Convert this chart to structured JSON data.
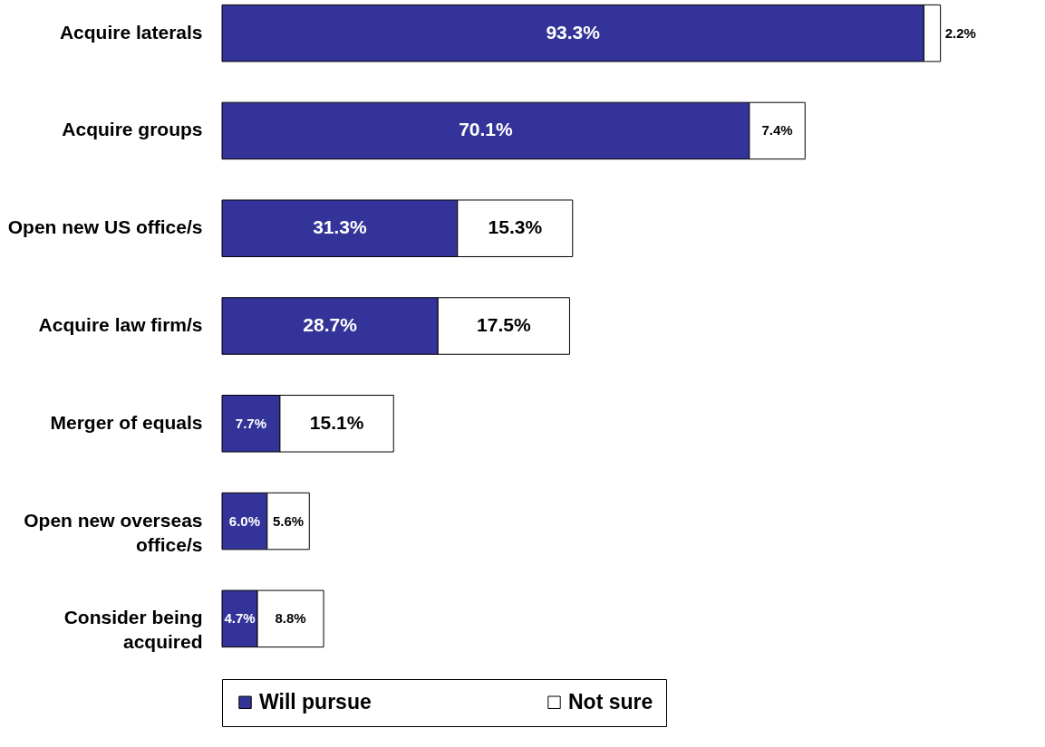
{
  "chart_data": {
    "type": "bar",
    "orientation": "horizontal",
    "stacked": true,
    "legend": "bottom",
    "grid": false,
    "categories": [
      "Acquire laterals",
      "Acquire groups",
      "Open new US office/s",
      "Acquire law firm/s",
      "Merger of equals",
      "Open new overseas office/s",
      "Consider being acquired"
    ],
    "series": [
      {
        "name": "Will pursue",
        "color": "#333399",
        "values": [
          93.3,
          70.1,
          31.3,
          28.7,
          7.7,
          6.0,
          4.7
        ],
        "value_labels": [
          "93.3%",
          "70.1%",
          "31.3%",
          "28.7%",
          "7.7%",
          "6.0%",
          "4.7%"
        ]
      },
      {
        "name": "Not sure",
        "color": "#ffffff",
        "values": [
          2.2,
          7.4,
          15.3,
          17.5,
          15.1,
          5.6,
          8.8
        ],
        "value_labels": [
          "2.2%",
          "7.4%",
          "15.3%",
          "17.5%",
          "15.1%",
          "5.6%",
          "8.8%"
        ]
      }
    ]
  }
}
